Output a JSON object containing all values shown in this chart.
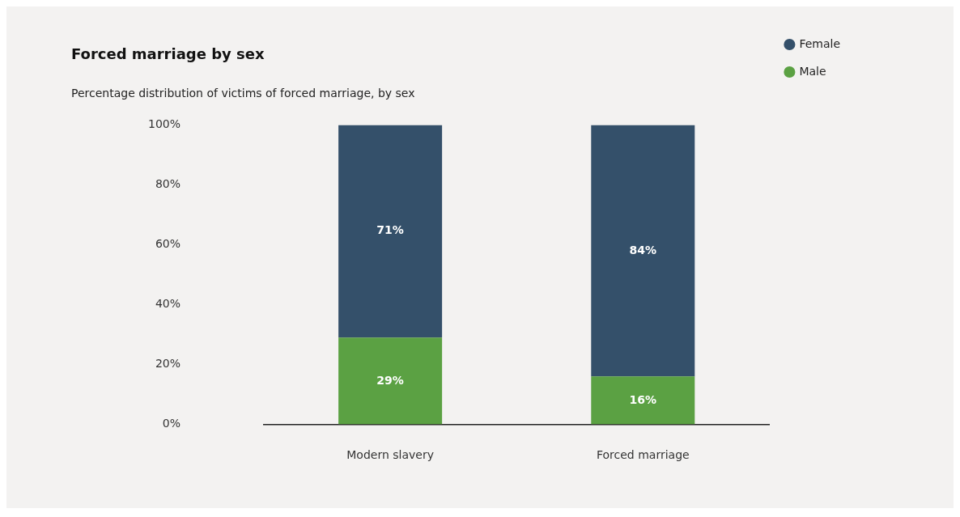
{
  "chart_data": {
    "type": "bar",
    "title": "Forced marriage by sex",
    "subtitle": "Percentage distribution of victims of forced marriage, by sex",
    "categories": [
      "Modern slavery",
      "Forced marriage"
    ],
    "stacked": true,
    "series": [
      {
        "name": "Male",
        "color": "#5ba143",
        "values": [
          29,
          16
        ],
        "value_labels": [
          "29%",
          "16%"
        ]
      },
      {
        "name": "Female",
        "color": "#34506a",
        "values": [
          71,
          84
        ],
        "value_labels": [
          "71%",
          "84%"
        ]
      }
    ],
    "ylim": [
      0,
      100
    ],
    "yticks": [
      {
        "value": 0,
        "label": "0%"
      },
      {
        "value": 20,
        "label": "20%"
      },
      {
        "value": 40,
        "label": "40%"
      },
      {
        "value": 60,
        "label": "60%"
      },
      {
        "value": 80,
        "label": "80%"
      },
      {
        "value": 100,
        "label": "100%"
      }
    ],
    "grid": false,
    "legend": "top right"
  }
}
